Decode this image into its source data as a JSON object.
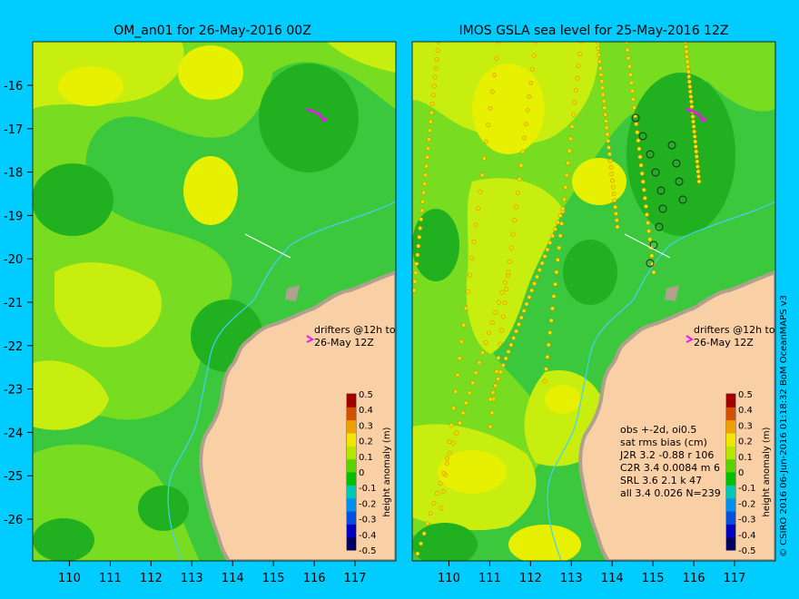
{
  "left_panel": {
    "title": "OM_an01 for 26-May-2016 00Z",
    "drifter_note": [
      "drifters @12h to",
      "26-May 12Z"
    ],
    "colorbar_label": "height anomaly (m)"
  },
  "right_panel": {
    "title": "IMOS GSLA sea level  for 25-May-2016 12Z",
    "drifter_note": [
      "drifters @12h to",
      "26-May 12Z"
    ],
    "colorbar_label": "height anomaly (m)",
    "stats": [
      "obs +-2d, oi0.5",
      "sat rms bias (cm)",
      "J2R   3.2 -0.88 r 106",
      "C2R   3.4 0.0084 m 6",
      "SRL    3.6 2.1 k 47",
      "all    3.4 0.026 N=239"
    ]
  },
  "axes": {
    "x_ticks": [
      "110",
      "111",
      "112",
      "113",
      "114",
      "115",
      "116",
      "117"
    ],
    "y_ticks": [
      "-16",
      "-17",
      "-18",
      "-19",
      "-20",
      "-21",
      "-22",
      "-23",
      "-24",
      "-25",
      "-26"
    ]
  },
  "colorbar": {
    "ticks": [
      "0.5",
      "0.4",
      "0.3",
      "0.2",
      "0.1",
      "0",
      "-0.1",
      "-0.2",
      "-0.3",
      "-0.4",
      "-0.5"
    ],
    "colors": [
      "#000060",
      "#0000c0",
      "#0050e0",
      "#0090f0",
      "#00c8b4",
      "#00c000",
      "#58d200",
      "#b4e600",
      "#f0e600",
      "#f0a000",
      "#d25000",
      "#a00000"
    ]
  },
  "map_colors": {
    "green_dark": "#20b020",
    "green": "#3cc83c",
    "green_light": "#78dc20",
    "yellow_green": "#c8ee10",
    "yellow": "#e6f000",
    "land": "#f9cfa6",
    "coast": "#b0a08e",
    "drifter": "#e020e0"
  },
  "credit": "© CSIRO 2016   06-Jun-2016 01:18:32 BoM OceanMAPS v3"
}
